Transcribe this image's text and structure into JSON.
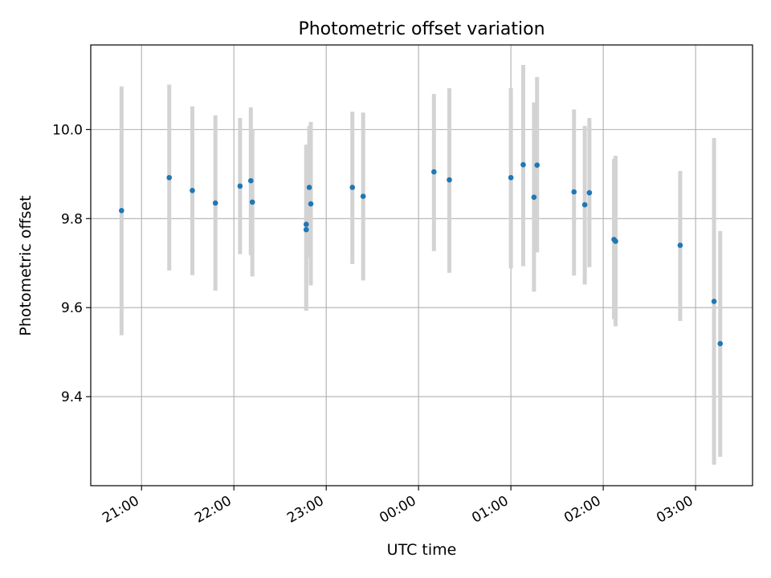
{
  "chart_data": {
    "type": "scatter",
    "title": "Photometric offset variation",
    "xlabel": "UTC time",
    "ylabel": "Photometric offset",
    "x_ticks": [
      "21:00",
      "22:00",
      "23:00",
      "00:00",
      "01:00",
      "02:00",
      "03:00"
    ],
    "y_ticks": [
      "9.4",
      "9.6",
      "9.8",
      "10.0"
    ],
    "xlim": [
      "20:27",
      "03:37"
    ],
    "ylim": [
      9.2,
      10.19
    ],
    "grid": true,
    "legend": "none",
    "colors": {
      "marker": "#1f77b4",
      "error_bar": "#d3d3d3",
      "grid": "#b0b0b0"
    },
    "series": [
      {
        "points": [
          {
            "x": "20:47",
            "y": 9.818,
            "ylow": 9.538,
            "yhigh": 10.097
          },
          {
            "x": "21:18",
            "y": 9.892,
            "ylow": 9.683,
            "yhigh": 10.101
          },
          {
            "x": "21:33",
            "y": 9.863,
            "ylow": 9.673,
            "yhigh": 10.052
          },
          {
            "x": "21:48",
            "y": 9.835,
            "ylow": 9.638,
            "yhigh": 10.032
          },
          {
            "x": "22:04",
            "y": 9.873,
            "ylow": 9.72,
            "yhigh": 10.026
          },
          {
            "x": "22:11",
            "y": 9.885,
            "ylow": 9.718,
            "yhigh": 10.05
          },
          {
            "x": "22:12",
            "y": 9.837,
            "ylow": 9.67,
            "yhigh": 10.0
          },
          {
            "x": "22:47",
            "y": 9.787,
            "ylow": 9.603,
            "yhigh": 9.962
          },
          {
            "x": "22:47",
            "y": 9.775,
            "ylow": 9.593,
            "yhigh": 9.966
          },
          {
            "x": "22:49",
            "y": 9.87,
            "ylow": 9.712,
            "yhigh": 10.008
          },
          {
            "x": "22:50",
            "y": 9.833,
            "ylow": 9.65,
            "yhigh": 10.017
          },
          {
            "x": "23:17",
            "y": 9.87,
            "ylow": 9.698,
            "yhigh": 10.04
          },
          {
            "x": "23:24",
            "y": 9.85,
            "ylow": 9.661,
            "yhigh": 10.038
          },
          {
            "x": "00:10",
            "y": 9.905,
            "ylow": 9.727,
            "yhigh": 10.08
          },
          {
            "x": "00:20",
            "y": 9.887,
            "ylow": 9.678,
            "yhigh": 10.093
          },
          {
            "x": "01:00",
            "y": 9.892,
            "ylow": 9.688,
            "yhigh": 10.093
          },
          {
            "x": "01:08",
            "y": 9.921,
            "ylow": 9.693,
            "yhigh": 10.145
          },
          {
            "x": "01:15",
            "y": 9.848,
            "ylow": 9.636,
            "yhigh": 10.061
          },
          {
            "x": "01:17",
            "y": 9.92,
            "ylow": 9.724,
            "yhigh": 10.118
          },
          {
            "x": "01:41",
            "y": 9.86,
            "ylow": 9.672,
            "yhigh": 10.045
          },
          {
            "x": "01:48",
            "y": 9.831,
            "ylow": 9.652,
            "yhigh": 10.008
          },
          {
            "x": "01:51",
            "y": 9.858,
            "ylow": 9.691,
            "yhigh": 10.026
          },
          {
            "x": "02:07",
            "y": 9.753,
            "ylow": 9.574,
            "yhigh": 9.934
          },
          {
            "x": "02:08",
            "y": 9.749,
            "ylow": 9.558,
            "yhigh": 9.941
          },
          {
            "x": "02:50",
            "y": 9.74,
            "ylow": 9.57,
            "yhigh": 9.907
          },
          {
            "x": "03:12",
            "y": 9.614,
            "ylow": 9.247,
            "yhigh": 9.981
          },
          {
            "x": "03:16",
            "y": 9.519,
            "ylow": 9.265,
            "yhigh": 9.772
          }
        ]
      }
    ]
  }
}
